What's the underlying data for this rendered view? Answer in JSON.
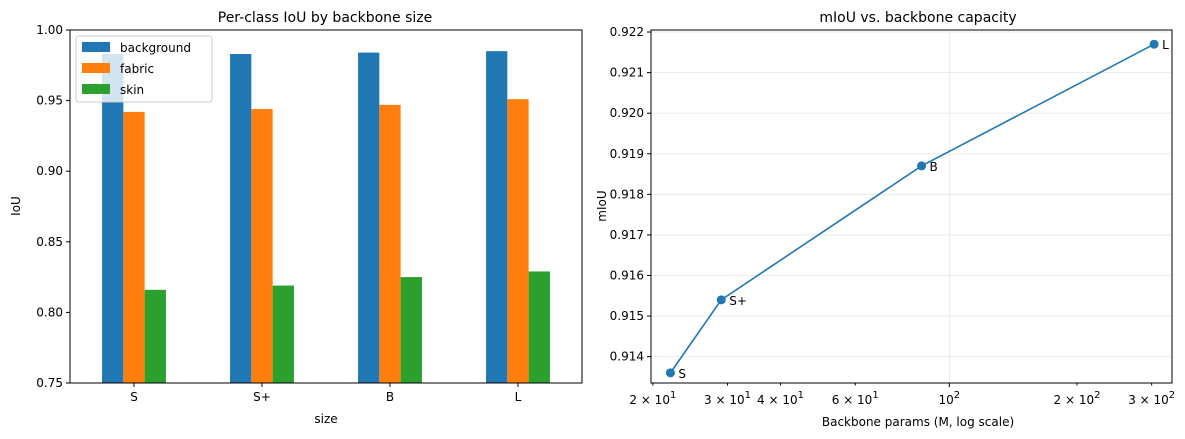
{
  "chart_data": [
    {
      "type": "bar",
      "title": "Per-class IoU by backbone size",
      "xlabel": "size",
      "ylabel": "IoU",
      "ylim": [
        0.75,
        1.0
      ],
      "yticks": [
        "0.75",
        "0.80",
        "0.85",
        "0.90",
        "0.95",
        "1.00"
      ],
      "categories": [
        "S",
        "S+",
        "B",
        "L"
      ],
      "series": [
        {
          "name": "background",
          "color": "#1f77b4",
          "values": [
            0.983,
            0.983,
            0.984,
            0.985
          ]
        },
        {
          "name": "fabric",
          "color": "#ff7f0e",
          "values": [
            0.942,
            0.944,
            0.947,
            0.951
          ]
        },
        {
          "name": "skin",
          "color": "#2ca02c",
          "values": [
            0.816,
            0.819,
            0.825,
            0.829
          ]
        }
      ],
      "legend": "top-left",
      "grid": false
    },
    {
      "type": "line",
      "title": "mIoU vs. backbone capacity",
      "xlabel": "Backbone params (M, log scale)",
      "ylabel": "mIoU",
      "xscale": "log",
      "xlim": [
        19.8,
        335
      ],
      "ylim": [
        0.91335,
        0.92205
      ],
      "yticks": [
        "0.914",
        "0.915",
        "0.916",
        "0.917",
        "0.918",
        "0.919",
        "0.920",
        "0.921",
        "0.922"
      ],
      "xticks": [
        {
          "value": 20,
          "base": "2 × 10",
          "exp": "1"
        },
        {
          "value": 30,
          "base": "3 × 10",
          "exp": "1"
        },
        {
          "value": 40,
          "base": "4 × 10",
          "exp": "1"
        },
        {
          "value": 60,
          "base": "6 × 10",
          "exp": "1"
        },
        {
          "value": 100,
          "base": "10",
          "exp": "2"
        },
        {
          "value": 200,
          "base": "2 × 10",
          "exp": "2"
        },
        {
          "value": 300,
          "base": "3 × 10",
          "exp": "2"
        }
      ],
      "color": "#1f77b4",
      "points": [
        {
          "label": "S",
          "x": 22,
          "y": 0.9136
        },
        {
          "label": "S+",
          "x": 29,
          "y": 0.9154
        },
        {
          "label": "B",
          "x": 86,
          "y": 0.9187
        },
        {
          "label": "L",
          "x": 304,
          "y": 0.9217
        }
      ],
      "grid": true
    }
  ]
}
